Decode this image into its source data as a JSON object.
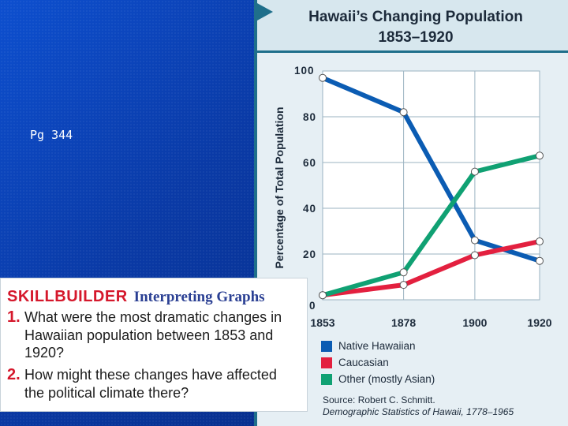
{
  "slide": {
    "caption": "Pg 344"
  },
  "chart_data": {
    "type": "line",
    "title": "Hawaii’s Changing Population",
    "subtitle": "1853–1920",
    "xlabel": "",
    "ylabel": "Percentage of Total Population",
    "x": [
      1853,
      1878,
      1900,
      1920
    ],
    "x_tick_labels": [
      "1853",
      "1878",
      "1900",
      "1920"
    ],
    "y_tick_labels": [
      "0",
      "20",
      "40",
      "60",
      "80",
      "100"
    ],
    "ylim": [
      0,
      100
    ],
    "grid": true,
    "legend_position": "bottom",
    "series": [
      {
        "name": "Native Hawaiian",
        "color": "#0b5cb3",
        "values": [
          97,
          82,
          26,
          17
        ]
      },
      {
        "name": "Caucasian",
        "color": "#e3203f",
        "values": [
          2,
          6.5,
          19.5,
          25.5
        ]
      },
      {
        "name": "Other (mostly Asian)",
        "color": "#10a173",
        "values": [
          2,
          12,
          56,
          63
        ]
      }
    ],
    "source_line": "Source: Robert C. Schmitt.",
    "source_citation": "Demographic Statistics of Hawaii, 1778–1965"
  },
  "skillbuilder": {
    "keyword": "SKILLBUILDER",
    "topic": "Interpreting Graphs",
    "questions": [
      {
        "number": "1.",
        "text": "What were the most dramatic changes in Hawaiian population between 1853 and 1920?"
      },
      {
        "number": "2.",
        "text": "How might these changes have affected the political climate there?"
      }
    ]
  }
}
